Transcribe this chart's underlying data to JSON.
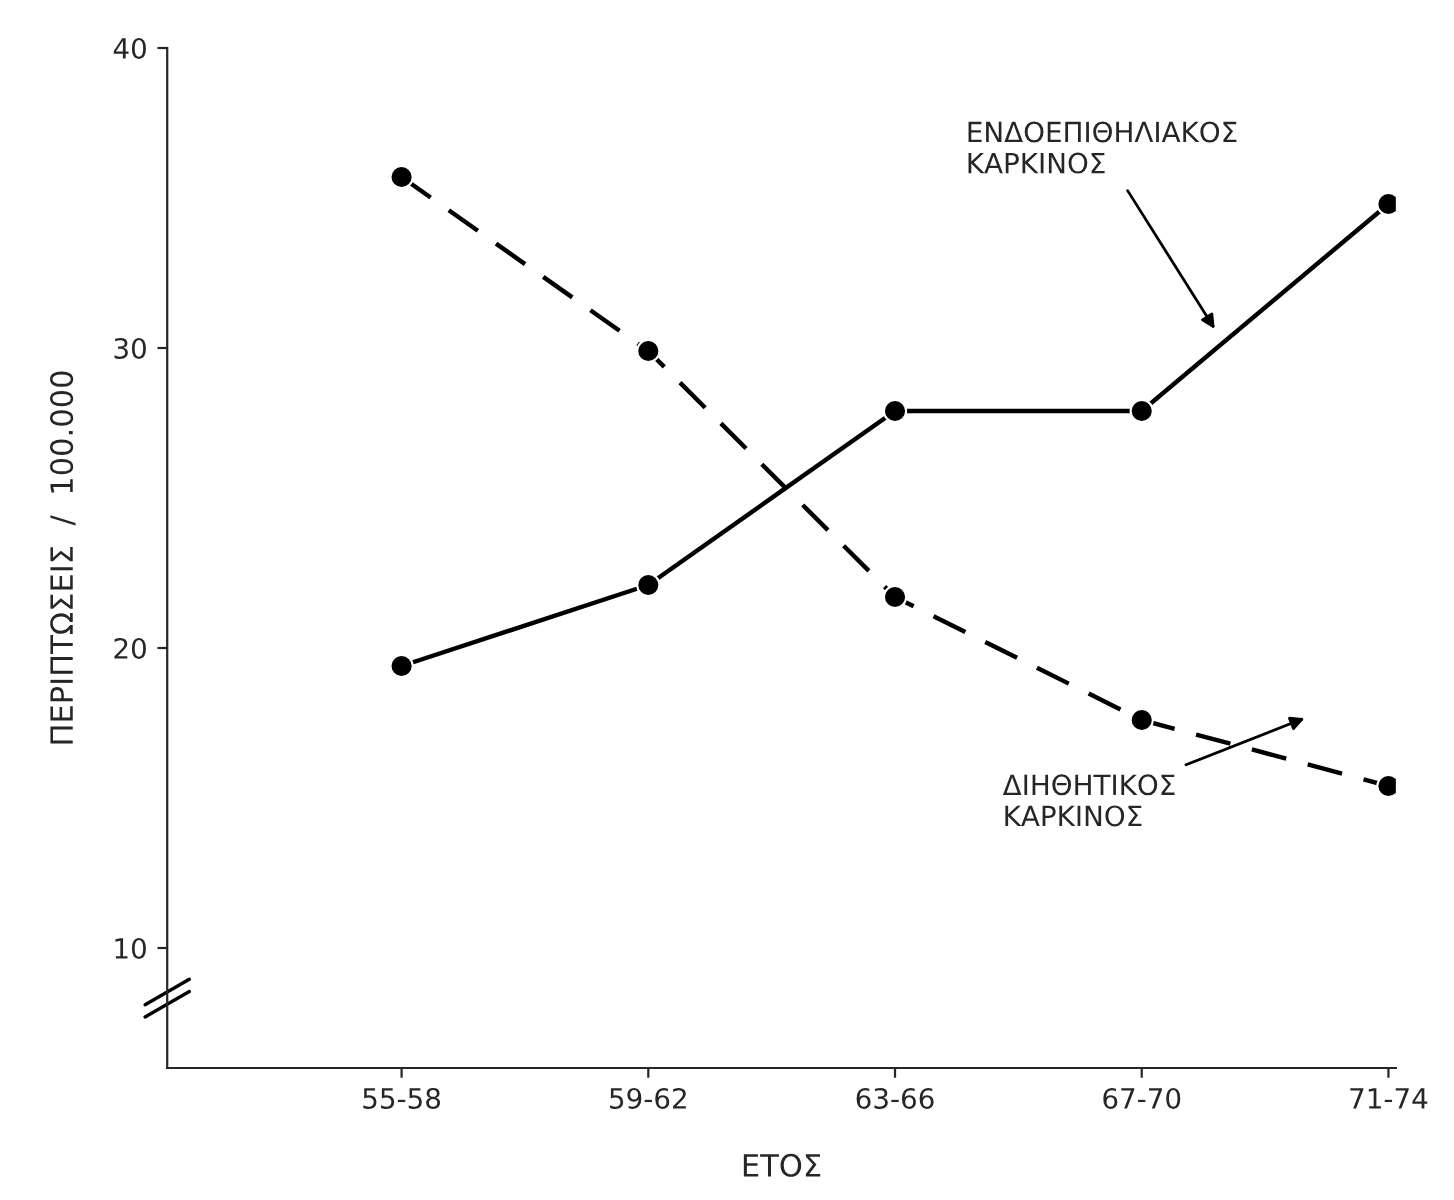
{
  "chart_data": {
    "type": "line",
    "xlabel": "ΕΤΟΣ",
    "ylabel": "ΠΕΡΙΠΤΩΣΕΙΣ  /  100.000",
    "categories": [
      "55-58",
      "59-62",
      "63-66",
      "67-70",
      "71-74"
    ],
    "series": [
      {
        "name": "ΕΝΔΟΕΠΙΘΗΛΙΑΚΟΣ\nΚΑΡΚΙΝΟΣ",
        "color": "#000000",
        "line_style": "solid",
        "values": [
          19.4,
          22.1,
          27.9,
          27.9,
          34.8
        ]
      },
      {
        "name": "ΔΙΗΘΗΤΙΚΟΣ\nΚΑΡΚΙΝΟΣ",
        "color": "#000000",
        "line_style": "dashed",
        "values": [
          35.7,
          29.9,
          21.7,
          17.6,
          15.4
        ]
      }
    ],
    "ylim": [
      6,
      40
    ],
    "yticks": [
      10,
      20,
      30,
      40
    ],
    "marker": "circle",
    "grid": false,
    "legend": false
  }
}
